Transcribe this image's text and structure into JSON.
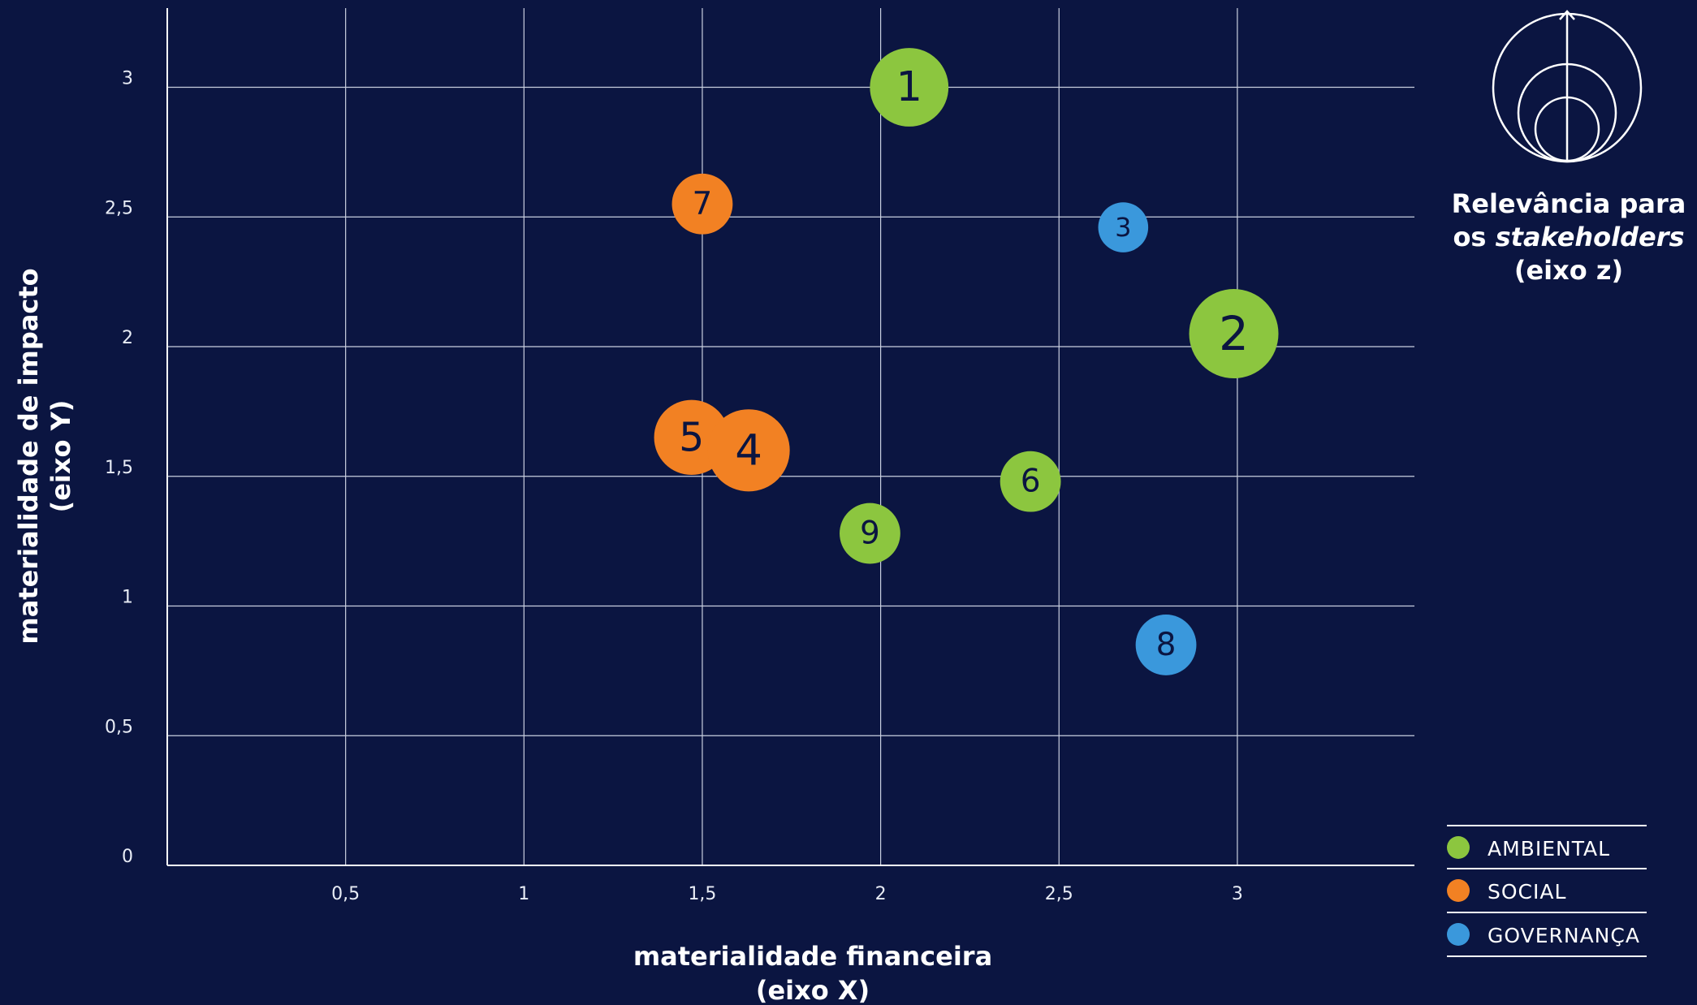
{
  "chart_data": {
    "type": "bubble",
    "xlabel_line1": "materialidade financeira",
    "xlabel_line2": "(eixo X)",
    "ylabel_line1": "materialidade de impacto",
    "ylabel_line2": "(eixo Y)",
    "zlabel": {
      "line1": "Relevância para",
      "line2_prefix": "os ",
      "line2_italic": "stakeholders",
      "line3": "(eixo z)"
    },
    "xlim": [
      0,
      3.5
    ],
    "ylim": [
      0,
      3.3
    ],
    "x_ticks": [
      {
        "value": 0.5,
        "label": "0,5"
      },
      {
        "value": 1,
        "label": "1"
      },
      {
        "value": 1.5,
        "label": "1,5"
      },
      {
        "value": 2,
        "label": "2"
      },
      {
        "value": 2.5,
        "label": "2,5"
      },
      {
        "value": 3,
        "label": "3"
      }
    ],
    "y_ticks": [
      {
        "value": 0,
        "label": "0"
      },
      {
        "value": 0.5,
        "label": "0,5"
      },
      {
        "value": 1,
        "label": "1"
      },
      {
        "value": 1.5,
        "label": "1,5"
      },
      {
        "value": 2,
        "label": "2"
      },
      {
        "value": 2.5,
        "label": "2,5"
      },
      {
        "value": 3,
        "label": "3"
      }
    ],
    "grid": true,
    "legend_position": "bottom-right",
    "categories": [
      {
        "key": "ambiental",
        "name": "AMBIENTAL",
        "color": "#8cc63f"
      },
      {
        "key": "social",
        "name": "SOCIAL",
        "color": "#f28123"
      },
      {
        "key": "governanca",
        "name": "GOVERNANÇA",
        "color": "#3a98dc"
      }
    ],
    "points": [
      {
        "label": "1",
        "category": "ambiental",
        "x": 2.08,
        "y": 3.0,
        "z": 2.2
      },
      {
        "label": "7",
        "category": "social",
        "x": 1.5,
        "y": 2.55,
        "z": 1.7
      },
      {
        "label": "3",
        "category": "governanca",
        "x": 2.68,
        "y": 2.46,
        "z": 1.4
      },
      {
        "label": "2",
        "category": "ambiental",
        "x": 2.99,
        "y": 2.05,
        "z": 2.5
      },
      {
        "label": "5",
        "category": "social",
        "x": 1.47,
        "y": 1.65,
        "z": 2.1
      },
      {
        "label": "4",
        "category": "social",
        "x": 1.63,
        "y": 1.6,
        "z": 2.3
      },
      {
        "label": "6",
        "category": "ambiental",
        "x": 2.42,
        "y": 1.48,
        "z": 1.7
      },
      {
        "label": "9",
        "category": "ambiental",
        "x": 1.97,
        "y": 1.28,
        "z": 1.7
      },
      {
        "label": "8",
        "category": "governanca",
        "x": 2.8,
        "y": 0.85,
        "z": 1.7
      }
    ]
  }
}
